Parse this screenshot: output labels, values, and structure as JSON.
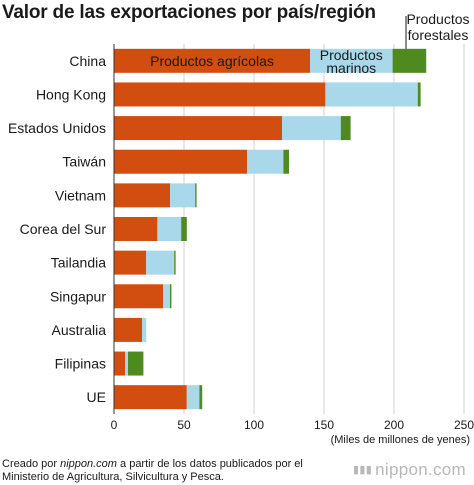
{
  "title": "Valor de las exportaciones por país/región",
  "source": {
    "line1_before": "Creado por ",
    "line1_site": "nippon.com",
    "line1_after": " a partir de los datos publicados por el",
    "line2": "Ministerio de Agricultura, Silvicultura y Pesca."
  },
  "brand": "nippon.com",
  "colors": {
    "agricola": "#d14e10",
    "marinos": "#a8d8ea",
    "forestales": "#4e8a1f"
  },
  "chart_data": {
    "type": "bar",
    "orientation": "horizontal",
    "stacked": true,
    "categories": [
      "China",
      "Hong Kong",
      "Estados Unidos",
      "Taiwán",
      "Vietnam",
      "Corea del Sur",
      "Tailandia",
      "Singapur",
      "Australia",
      "Filipinas",
      "UE"
    ],
    "series": [
      {
        "name": "Productos agrícolas",
        "values": [
          140,
          151,
          120,
          95,
          40,
          31,
          23,
          35,
          20,
          8,
          52
        ]
      },
      {
        "name": "Productos marinos",
        "values": [
          59,
          66,
          42,
          26,
          18,
          17,
          20,
          5,
          3,
          2,
          9
        ]
      },
      {
        "name": "Productos forestales",
        "values": [
          24,
          2,
          7,
          4,
          1,
          4,
          1,
          1,
          0,
          11,
          2
        ]
      }
    ],
    "series_labels": {
      "agricola": "Productos agrícolas",
      "marinos_1": "Productos",
      "marinos_2": "marinos",
      "forestales_1": "Productos",
      "forestales_2": "forestales"
    },
    "xlim": [
      0,
      250
    ],
    "xticks": [
      0,
      50,
      100,
      150,
      200,
      250
    ],
    "xlabel": "(Miles de millones de yenes)",
    "grid": true
  }
}
